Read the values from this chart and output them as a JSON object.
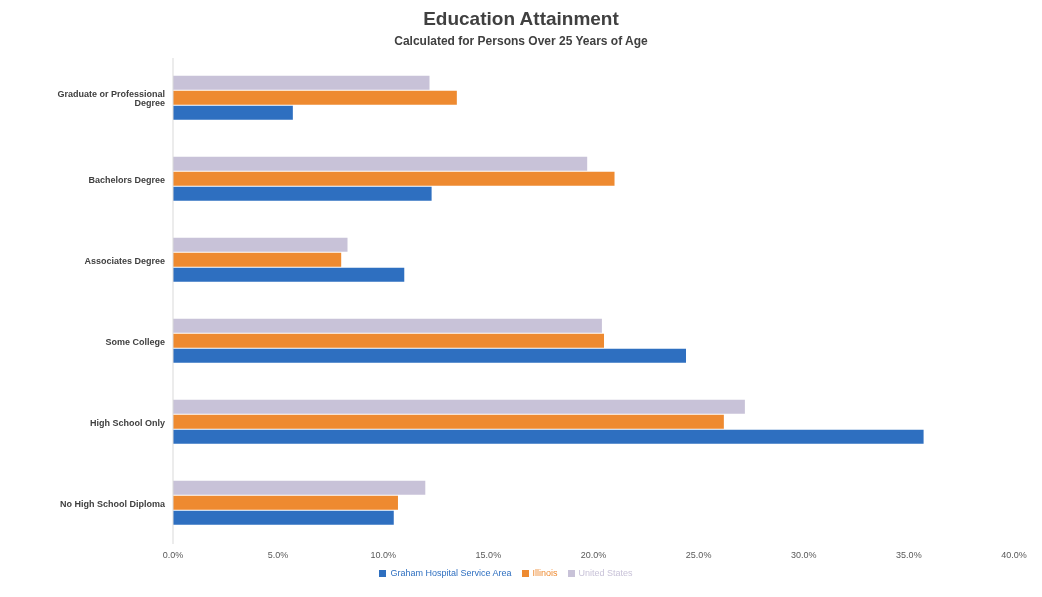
{
  "chart_data": {
    "type": "bar",
    "orientation": "horizontal",
    "title": "Education Attainment",
    "subtitle": "Calculated for Persons Over 25 Years of Age",
    "categories": [
      "Graduate or Professional Degree",
      "Bachelors Degree",
      "Associates Degree",
      "Some College",
      "High School Only",
      "No High School Diploma"
    ],
    "series": [
      {
        "name": "United States",
        "color": "#c8c2d8",
        "values": [
          12.2,
          19.7,
          8.3,
          20.4,
          27.2,
          12.0
        ]
      },
      {
        "name": "Illinois",
        "color": "#ee8a30",
        "values": [
          13.5,
          21.0,
          8.0,
          20.5,
          26.2,
          10.7
        ]
      },
      {
        "name": "Graham Hospital Service Area",
        "color": "#2e6fc0",
        "values": [
          5.7,
          12.3,
          11.0,
          24.4,
          35.7,
          10.5
        ]
      }
    ],
    "xlim": [
      0,
      40
    ],
    "xticks": [
      {
        "value": 0,
        "label": "0.0%"
      },
      {
        "value": 5,
        "label": "5.0%"
      },
      {
        "value": 10,
        "label": "10.0%"
      },
      {
        "value": 15,
        "label": "15.0%"
      },
      {
        "value": 20,
        "label": "20.0%"
      },
      {
        "value": 25,
        "label": "25.0%"
      },
      {
        "value": 30,
        "label": "30.0%"
      },
      {
        "value": 35,
        "label": "35.0%"
      },
      {
        "value": 40,
        "label": "40.0%"
      }
    ],
    "grid": false,
    "legend": "bottom"
  }
}
